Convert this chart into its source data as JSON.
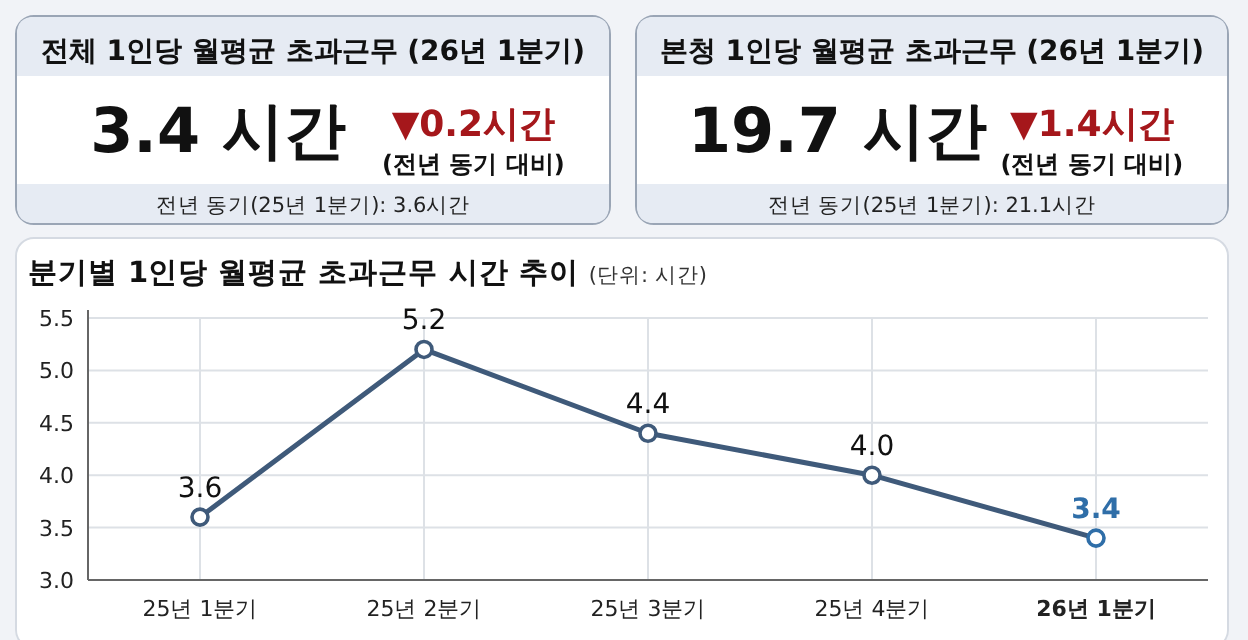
{
  "chart_data": [
    {
      "type": "other",
      "title": "전체 1인당 월평균 초과근무 (26년 1분기)",
      "annotations": [
        "3.4 시간",
        "▼0.2시간",
        "(전년 동기 대비)",
        "전년 동기(25년 1분기): 3.6시간"
      ]
    },
    {
      "type": "other",
      "title": "본청 1인당 월평균 초과근무 (26년 1분기)",
      "annotations": [
        "19.7 시간",
        "▼1.4시간",
        "(전년 동기 대비)",
        "전년 동기(25년 1분기): 21.1시간"
      ]
    },
    {
      "type": "line",
      "title": "분기별 1인당 월평균 초과근무 시간 추이",
      "subtitle": "(단위: 시간)",
      "categories": [
        "25년 1분기",
        "25년 2분기",
        "25년 3분기",
        "25년 4분기",
        "26년 1분기"
      ],
      "series": [
        {
          "color": "#3f5a7a",
          "colors": [
            "#3f5a7a",
            "#3f5a7a",
            "#3f5a7a",
            "#3f5a7a",
            "#2f6ea8"
          ],
          "values": [
            3.6,
            5.2,
            4.4,
            4.0,
            3.4
          ],
          "value_labels": [
            "3.6",
            "5.2",
            "4.4",
            "4.0",
            "3.4"
          ]
        }
      ],
      "ylim": [
        3,
        5.5
      ],
      "yticks": [
        {
          "value": 3,
          "label": "3.0"
        },
        3.5,
        {
          "value": 4,
          "label": "4.0"
        },
        4.5,
        {
          "value": 5,
          "label": "5.0"
        },
        5.5
      ],
      "grid": true,
      "marker": "circle",
      "line_style": "solid"
    }
  ]
}
